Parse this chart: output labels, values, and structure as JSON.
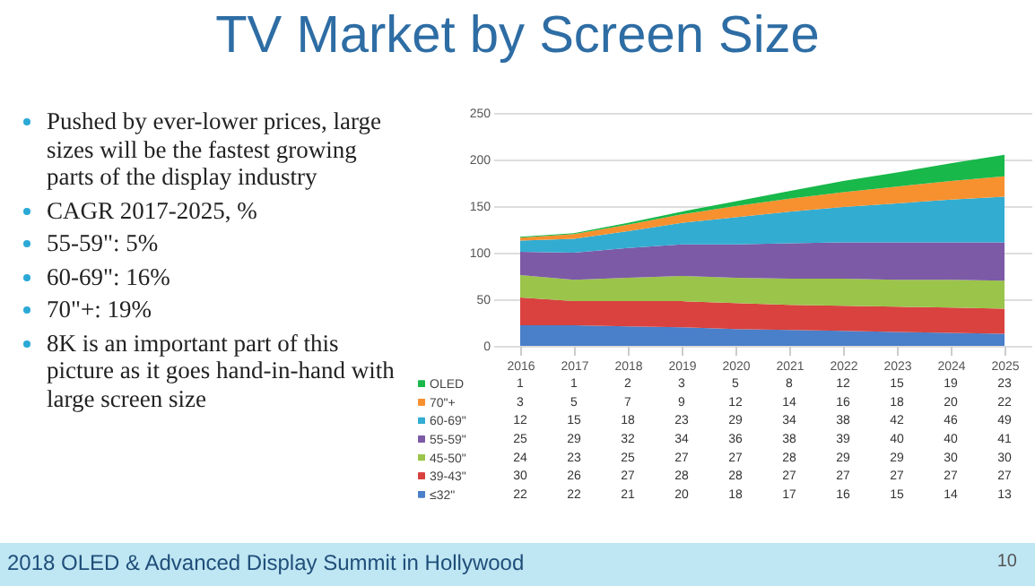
{
  "chart_data": {
    "type": "area",
    "title": "TV Market by Screen Size",
    "stacked": true,
    "data_labels": true,
    "legend": "bottom",
    "grid": "y",
    "categories": [
      "2016",
      "2017",
      "2018",
      "2019",
      "2020",
      "2021",
      "2022",
      "2023",
      "2024",
      "2025"
    ],
    "ylim": [
      0,
      250
    ],
    "yticks": [
      0,
      50,
      100,
      150,
      200,
      250
    ],
    "series": [
      {
        "name": "≤32\"",
        "color": "#4a7fc9",
        "values": [
          22,
          22,
          21,
          20,
          18,
          17,
          16,
          15,
          14,
          13
        ]
      },
      {
        "name": "39-43\"",
        "color": "#d9423f",
        "values": [
          30,
          26,
          27,
          28,
          28,
          27,
          27,
          27,
          27,
          27
        ]
      },
      {
        "name": "45-50\"",
        "color": "#9bc44a",
        "values": [
          24,
          23,
          25,
          27,
          27,
          28,
          29,
          29,
          30,
          30
        ]
      },
      {
        "name": "55-59\"",
        "color": "#7c5aa6",
        "values": [
          25,
          29,
          32,
          34,
          36,
          38,
          39,
          40,
          40,
          41
        ]
      },
      {
        "name": "60-69\"",
        "color": "#33acd1",
        "values": [
          12,
          15,
          18,
          23,
          29,
          34,
          38,
          42,
          46,
          49
        ]
      },
      {
        "name": "70\"+",
        "color": "#f7902f",
        "values": [
          3,
          5,
          7,
          9,
          12,
          14,
          16,
          18,
          20,
          22
        ]
      },
      {
        "name": "OLED",
        "color": "#18b84a",
        "values": [
          1,
          1,
          2,
          3,
          5,
          8,
          12,
          15,
          19,
          23
        ]
      }
    ],
    "annotations": [
      "Pushed by ever-lower prices, large sizes will be the fastest growing parts of the display industry",
      "CAGR 2017-2025, %",
      "55-59\": 5%",
      "60-69\": 16%",
      "70\"+: 19%",
      "8K is an important part of this picture as it goes hand-in-hand with large screen size",
      "2018 OLED & Advanced Display Summit in Hollywood",
      "10"
    ]
  }
}
